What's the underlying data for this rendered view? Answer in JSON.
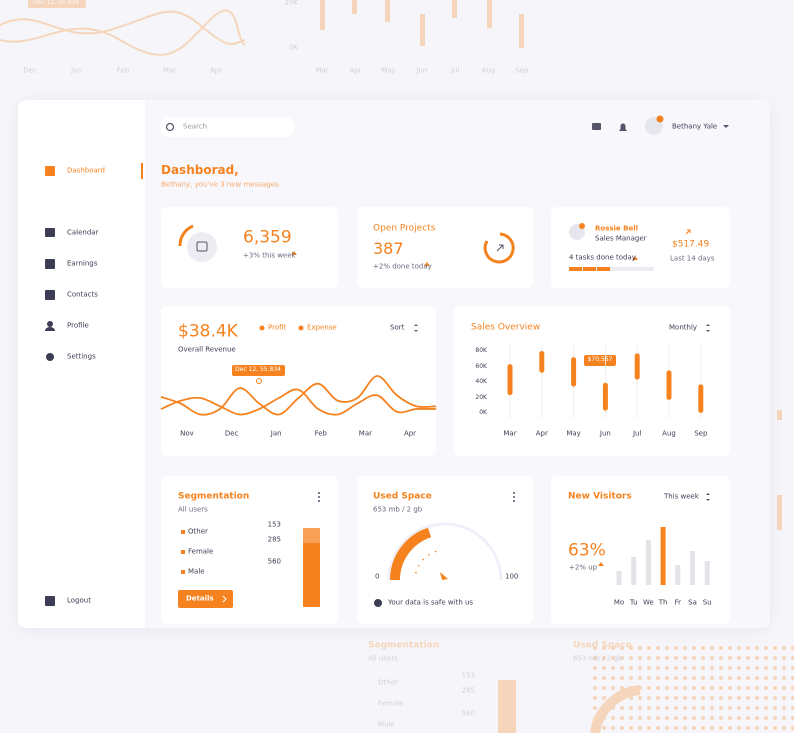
{
  "ghost": {
    "top_left": {
      "label": "Dec 12, 55.834",
      "months": [
        "Dec",
        "Jan",
        "Feb",
        "Mar",
        "Apr"
      ]
    },
    "top_right": {
      "yticks": [
        "20K",
        "0K"
      ],
      "months": [
        "Mar",
        "Apr",
        "May",
        "Jun",
        "Jul",
        "Aug",
        "Sep"
      ]
    },
    "bottom": {
      "title": "Segmentation",
      "subtitle": "All users",
      "labels": [
        "Other",
        "Female",
        "Male"
      ],
      "values": [
        "153",
        "285",
        "560"
      ],
      "used_title": "Used Space",
      "used_subtitle": "653 mb / 2 gb"
    }
  },
  "sidebar": {
    "menu": [
      "Dashboard",
      "Calendar",
      "Earnings",
      "Contacts",
      "Profile",
      "Settings"
    ],
    "logout": "Logout"
  },
  "header": {
    "search": "Search",
    "user": "Bethany Yale"
  },
  "greeting": {
    "title": "Dashborad,",
    "subtitle": "Bethany, you've 3 new messages."
  },
  "stats": [
    {
      "value": "6,359",
      "note": "+3% this week"
    },
    {
      "title": "Open Projects",
      "value": "387",
      "note": "+2% done today"
    },
    {
      "name": "Rossie Bell",
      "role": "Sales Manager",
      "tasks": "4 tasks done today",
      "amount": "$517.49",
      "period": "Last 14 days"
    }
  ],
  "revenue": {
    "amount": "$38.4K",
    "subtitle": "Overall Revenue",
    "sort": "Sort",
    "tooltip": "Dec 12, 55.834",
    "months": [
      "Nov",
      "Dec",
      "Jan",
      "Feb",
      "Mar",
      "Apr"
    ],
    "ylim": [
      0,
      100
    ],
    "series": [
      {
        "name": "Profit",
        "color": "#f5821f",
        "values": [
          42,
          30,
          10,
          20,
          58,
          30,
          10,
          40,
          66,
          35,
          40,
          80,
          45,
          25,
          25
        ]
      },
      {
        "name": "Expense",
        "color": "#f5821f",
        "values": [
          20,
          35,
          40,
          25,
          10,
          20,
          40,
          55,
          20,
          10,
          30,
          45,
          15,
          20,
          20
        ]
      }
    ]
  },
  "sales": {
    "title": "Sales Overview",
    "period": "Monthly",
    "tooltip": "$70,567",
    "ylim": [
      0,
      80
    ],
    "yticks": [
      {
        "value": 80,
        "label": "80K"
      },
      {
        "value": 60,
        "label": "60K"
      },
      {
        "value": 40,
        "label": "40K"
      },
      {
        "value": 20,
        "label": "20K"
      },
      {
        "value": 0,
        "label": "0K"
      }
    ],
    "months": [
      "Mar",
      "Apr",
      "May",
      "Jun",
      "Jul",
      "Aug",
      "Sep"
    ],
    "low": [
      23,
      52,
      34,
      3,
      43,
      17,
      0
    ],
    "high": [
      63,
      80,
      72,
      39,
      77,
      55,
      37
    ]
  },
  "segmentation": {
    "title": "Segmentation",
    "subtitle": "All users",
    "labels": [
      "Other",
      "Female",
      "Male"
    ],
    "values": [
      153,
      285,
      560
    ],
    "button": "Details"
  },
  "used_space": {
    "title": "Used Space",
    "subtitle": "653 mb / 2 gb",
    "min": 0,
    "max": 100,
    "value": 40,
    "note": "Your data is safe with us"
  },
  "visitors": {
    "title": "New Visitors",
    "period": "This week",
    "value": "63%",
    "note": "+2% up",
    "ylim": [
      0,
      60
    ],
    "days": [
      "Mo",
      "Tu",
      "We",
      "Th",
      "Fr",
      "Sa",
      "Su"
    ],
    "values": [
      14,
      28,
      45,
      58,
      20,
      34,
      24
    ]
  }
}
